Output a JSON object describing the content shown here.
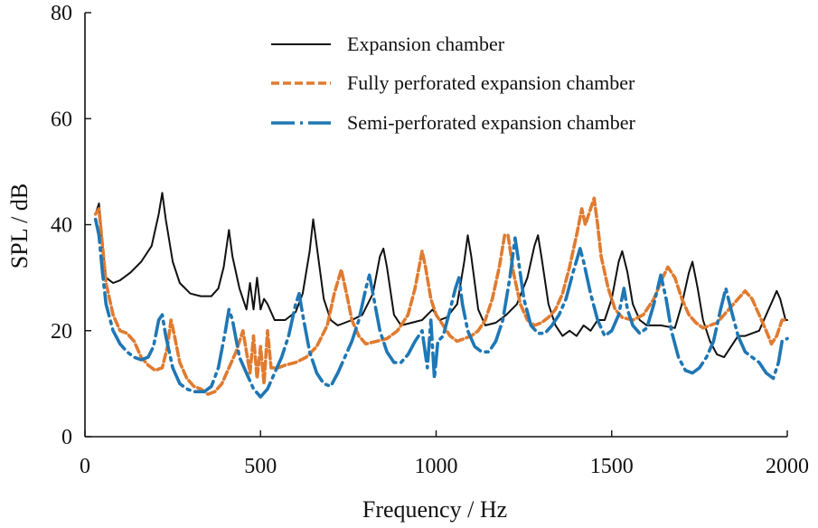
{
  "chart_data": {
    "type": "line",
    "title": "",
    "xlabel": "Frequency / Hz",
    "ylabel": "SPL  / dB",
    "xlim": [
      0,
      2000
    ],
    "ylim": [
      0,
      80
    ],
    "xticks": [
      0,
      500,
      1000,
      1500,
      2000
    ],
    "yticks": [
      0,
      20,
      40,
      60,
      80
    ],
    "xtick_labels": [
      "0",
      "500",
      "1000",
      "1500",
      "2000"
    ],
    "ytick_labels": [
      "0",
      "20",
      "40",
      "60",
      "80"
    ],
    "grid": false,
    "legend_position": "top-center",
    "series": [
      {
        "name": "Expansion chamber",
        "color": "#111111",
        "style": "solid",
        "points": [
          [
            30,
            42
          ],
          [
            40,
            44
          ],
          [
            50,
            36
          ],
          [
            60,
            30
          ],
          [
            80,
            29
          ],
          [
            100,
            29.5
          ],
          [
            130,
            31
          ],
          [
            160,
            33
          ],
          [
            190,
            36
          ],
          [
            210,
            42
          ],
          [
            220,
            46
          ],
          [
            230,
            41
          ],
          [
            250,
            33
          ],
          [
            270,
            29
          ],
          [
            300,
            27
          ],
          [
            330,
            26.5
          ],
          [
            360,
            26.5
          ],
          [
            380,
            28
          ],
          [
            395,
            32
          ],
          [
            410,
            39
          ],
          [
            420,
            34
          ],
          [
            440,
            28
          ],
          [
            460,
            24
          ],
          [
            470,
            29
          ],
          [
            480,
            24
          ],
          [
            490,
            30
          ],
          [
            500,
            24
          ],
          [
            510,
            26
          ],
          [
            520,
            25
          ],
          [
            540,
            22
          ],
          [
            570,
            22
          ],
          [
            600,
            23.5
          ],
          [
            620,
            27
          ],
          [
            640,
            35
          ],
          [
            650,
            41
          ],
          [
            660,
            36
          ],
          [
            680,
            26
          ],
          [
            700,
            22
          ],
          [
            720,
            21
          ],
          [
            740,
            21.5
          ],
          [
            760,
            22
          ],
          [
            790,
            23
          ],
          [
            820,
            27
          ],
          [
            840,
            34
          ],
          [
            850,
            35.5
          ],
          [
            860,
            32
          ],
          [
            880,
            23
          ],
          [
            900,
            21
          ],
          [
            930,
            21.5
          ],
          [
            960,
            22
          ],
          [
            990,
            24
          ],
          [
            1010,
            22
          ],
          [
            1030,
            22.5
          ],
          [
            1060,
            25
          ],
          [
            1080,
            33
          ],
          [
            1090,
            38
          ],
          [
            1100,
            34
          ],
          [
            1120,
            24
          ],
          [
            1140,
            21
          ],
          [
            1170,
            21.5
          ],
          [
            1200,
            23
          ],
          [
            1230,
            25
          ],
          [
            1260,
            30
          ],
          [
            1280,
            36
          ],
          [
            1290,
            38
          ],
          [
            1300,
            34
          ],
          [
            1320,
            25
          ],
          [
            1340,
            21
          ],
          [
            1360,
            19
          ],
          [
            1380,
            20
          ],
          [
            1400,
            19
          ],
          [
            1420,
            21
          ],
          [
            1440,
            20
          ],
          [
            1460,
            22
          ],
          [
            1480,
            22
          ],
          [
            1500,
            26
          ],
          [
            1520,
            33
          ],
          [
            1530,
            35
          ],
          [
            1545,
            31
          ],
          [
            1560,
            25
          ],
          [
            1580,
            22
          ],
          [
            1600,
            21
          ],
          [
            1640,
            21
          ],
          [
            1680,
            20.5
          ],
          [
            1700,
            25
          ],
          [
            1720,
            31
          ],
          [
            1730,
            33
          ],
          [
            1745,
            28
          ],
          [
            1760,
            22
          ],
          [
            1780,
            18
          ],
          [
            1800,
            15.5
          ],
          [
            1820,
            15
          ],
          [
            1840,
            17
          ],
          [
            1860,
            19
          ],
          [
            1880,
            19
          ],
          [
            1900,
            19.5
          ],
          [
            1920,
            20
          ],
          [
            1940,
            23
          ],
          [
            1960,
            26
          ],
          [
            1970,
            27.5
          ],
          [
            1980,
            26
          ],
          [
            1995,
            22
          ],
          [
            2000,
            22
          ]
        ]
      },
      {
        "name": "Fully perforated expansion chamber",
        "color": "#E07B30",
        "style": "dashed",
        "points": [
          [
            30,
            42
          ],
          [
            40,
            43
          ],
          [
            50,
            36
          ],
          [
            60,
            29
          ],
          [
            80,
            23
          ],
          [
            100,
            20
          ],
          [
            120,
            19.5
          ],
          [
            140,
            18
          ],
          [
            160,
            15
          ],
          [
            180,
            13.5
          ],
          [
            200,
            12.5
          ],
          [
            220,
            13
          ],
          [
            235,
            17
          ],
          [
            245,
            22
          ],
          [
            255,
            19
          ],
          [
            270,
            14
          ],
          [
            290,
            11
          ],
          [
            310,
            9.5
          ],
          [
            330,
            9
          ],
          [
            350,
            8
          ],
          [
            370,
            8.5
          ],
          [
            390,
            10
          ],
          [
            410,
            13
          ],
          [
            430,
            16
          ],
          [
            450,
            20
          ],
          [
            460,
            16
          ],
          [
            470,
            12
          ],
          [
            480,
            19
          ],
          [
            490,
            11
          ],
          [
            500,
            17
          ],
          [
            510,
            10
          ],
          [
            520,
            20
          ],
          [
            530,
            13
          ],
          [
            550,
            13
          ],
          [
            570,
            13.5
          ],
          [
            600,
            14
          ],
          [
            630,
            15
          ],
          [
            660,
            17
          ],
          [
            690,
            21
          ],
          [
            710,
            27
          ],
          [
            730,
            31.5
          ],
          [
            745,
            27
          ],
          [
            760,
            22
          ],
          [
            780,
            19
          ],
          [
            800,
            17.5
          ],
          [
            830,
            18
          ],
          [
            860,
            18.5
          ],
          [
            890,
            20
          ],
          [
            920,
            23
          ],
          [
            940,
            28
          ],
          [
            960,
            35
          ],
          [
            970,
            32
          ],
          [
            985,
            26
          ],
          [
            1000,
            23
          ],
          [
            1020,
            21
          ],
          [
            1040,
            19
          ],
          [
            1060,
            18
          ],
          [
            1080,
            18.5
          ],
          [
            1100,
            19
          ],
          [
            1120,
            20
          ],
          [
            1140,
            22
          ],
          [
            1160,
            26
          ],
          [
            1180,
            32
          ],
          [
            1195,
            38
          ],
          [
            1205,
            38
          ],
          [
            1220,
            31
          ],
          [
            1240,
            25
          ],
          [
            1260,
            22
          ],
          [
            1280,
            21
          ],
          [
            1300,
            21.5
          ],
          [
            1320,
            22.5
          ],
          [
            1340,
            24
          ],
          [
            1360,
            27
          ],
          [
            1380,
            32
          ],
          [
            1400,
            38
          ],
          [
            1415,
            43
          ],
          [
            1425,
            40
          ],
          [
            1440,
            43
          ],
          [
            1450,
            45
          ],
          [
            1460,
            40
          ],
          [
            1470,
            34
          ],
          [
            1490,
            28
          ],
          [
            1510,
            24
          ],
          [
            1530,
            22.5
          ],
          [
            1560,
            22
          ],
          [
            1590,
            23
          ],
          [
            1620,
            26
          ],
          [
            1645,
            30
          ],
          [
            1660,
            32
          ],
          [
            1680,
            30
          ],
          [
            1700,
            26
          ],
          [
            1720,
            23
          ],
          [
            1740,
            21.5
          ],
          [
            1760,
            20.5
          ],
          [
            1780,
            21
          ],
          [
            1800,
            21.5
          ],
          [
            1820,
            23
          ],
          [
            1840,
            24.5
          ],
          [
            1860,
            26
          ],
          [
            1880,
            27.5
          ],
          [
            1900,
            26
          ],
          [
            1920,
            23
          ],
          [
            1940,
            20
          ],
          [
            1955,
            17.5
          ],
          [
            1970,
            19
          ],
          [
            1985,
            22
          ],
          [
            2000,
            22
          ]
        ]
      },
      {
        "name": "Semi-perforated expansion chamber",
        "color": "#1F77B4",
        "style": "dashdot",
        "points": [
          [
            30,
            41
          ],
          [
            40,
            38
          ],
          [
            50,
            31
          ],
          [
            60,
            25
          ],
          [
            80,
            20
          ],
          [
            100,
            17.5
          ],
          [
            120,
            16
          ],
          [
            140,
            15
          ],
          [
            160,
            14.5
          ],
          [
            180,
            15
          ],
          [
            195,
            17
          ],
          [
            210,
            22
          ],
          [
            220,
            23
          ],
          [
            230,
            19
          ],
          [
            250,
            13
          ],
          [
            270,
            10
          ],
          [
            290,
            9
          ],
          [
            310,
            8.5
          ],
          [
            340,
            8.5
          ],
          [
            360,
            9.5
          ],
          [
            380,
            13
          ],
          [
            400,
            20
          ],
          [
            410,
            24
          ],
          [
            420,
            22
          ],
          [
            440,
            15
          ],
          [
            460,
            12
          ],
          [
            480,
            9
          ],
          [
            500,
            7.5
          ],
          [
            520,
            9
          ],
          [
            540,
            12
          ],
          [
            560,
            15
          ],
          [
            580,
            19
          ],
          [
            600,
            25
          ],
          [
            610,
            27
          ],
          [
            620,
            23
          ],
          [
            640,
            16
          ],
          [
            660,
            12
          ],
          [
            680,
            10
          ],
          [
            700,
            9.5
          ],
          [
            720,
            12
          ],
          [
            740,
            15
          ],
          [
            760,
            18
          ],
          [
            780,
            22
          ],
          [
            800,
            28
          ],
          [
            810,
            30.5
          ],
          [
            820,
            27
          ],
          [
            840,
            20
          ],
          [
            860,
            16
          ],
          [
            880,
            14
          ],
          [
            900,
            14
          ],
          [
            920,
            15.5
          ],
          [
            940,
            18
          ],
          [
            960,
            20
          ],
          [
            975,
            13
          ],
          [
            985,
            22
          ],
          [
            995,
            11
          ],
          [
            1005,
            18
          ],
          [
            1020,
            19
          ],
          [
            1040,
            24
          ],
          [
            1055,
            28
          ],
          [
            1065,
            30
          ],
          [
            1075,
            25
          ],
          [
            1090,
            20
          ],
          [
            1110,
            17
          ],
          [
            1130,
            16
          ],
          [
            1150,
            16
          ],
          [
            1170,
            18
          ],
          [
            1190,
            22
          ],
          [
            1210,
            30
          ],
          [
            1225,
            37.5
          ],
          [
            1235,
            33
          ],
          [
            1250,
            26
          ],
          [
            1270,
            21
          ],
          [
            1290,
            19.5
          ],
          [
            1310,
            19.5
          ],
          [
            1330,
            21
          ],
          [
            1350,
            23
          ],
          [
            1370,
            26
          ],
          [
            1390,
            31
          ],
          [
            1410,
            35.5
          ],
          [
            1420,
            33
          ],
          [
            1440,
            27
          ],
          [
            1460,
            22
          ],
          [
            1480,
            19
          ],
          [
            1500,
            20
          ],
          [
            1520,
            23
          ],
          [
            1535,
            28
          ],
          [
            1545,
            24
          ],
          [
            1560,
            21
          ],
          [
            1580,
            19.5
          ],
          [
            1600,
            20.5
          ],
          [
            1620,
            25
          ],
          [
            1640,
            30.5
          ],
          [
            1655,
            26
          ],
          [
            1670,
            20
          ],
          [
            1690,
            15
          ],
          [
            1710,
            12.5
          ],
          [
            1730,
            12
          ],
          [
            1750,
            13
          ],
          [
            1770,
            15
          ],
          [
            1790,
            18
          ],
          [
            1810,
            24
          ],
          [
            1825,
            28
          ],
          [
            1840,
            24
          ],
          [
            1860,
            19
          ],
          [
            1880,
            16
          ],
          [
            1900,
            15
          ],
          [
            1920,
            14
          ],
          [
            1940,
            12
          ],
          [
            1960,
            11
          ],
          [
            1975,
            14
          ],
          [
            1985,
            18
          ],
          [
            2000,
            18.5
          ]
        ]
      }
    ]
  }
}
